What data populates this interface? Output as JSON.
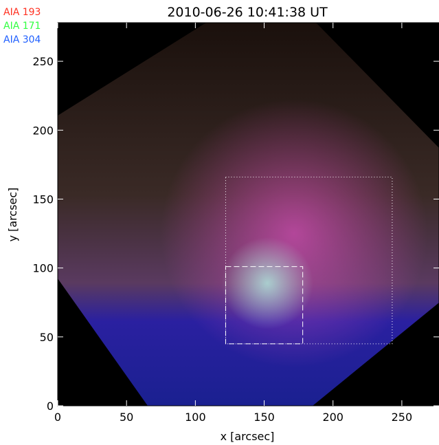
{
  "chart_data": {
    "type": "image",
    "title": "2010-06-26 10:41:38 UT",
    "x_label": "x [arcsec]",
    "y_label": "y [arcsec]",
    "xlim": [
      0,
      277
    ],
    "ylim": [
      0,
      278
    ],
    "xticks": [
      0,
      50,
      100,
      150,
      200,
      250
    ],
    "yticks": [
      0,
      50,
      100,
      150,
      200,
      250
    ],
    "series": [
      {
        "name": "AIA 193",
        "color": "#ff3020"
      },
      {
        "name": "AIA 171",
        "color": "#30ff40"
      },
      {
        "name": "AIA 304",
        "color": "#2060ff"
      }
    ],
    "regions": [
      {
        "style": "dotted",
        "xlim": [
          122,
          243
        ],
        "ylim": [
          45,
          166
        ]
      },
      {
        "style": "dashed",
        "xlim": [
          122,
          178
        ],
        "ylim": [
          45,
          101
        ]
      }
    ]
  }
}
